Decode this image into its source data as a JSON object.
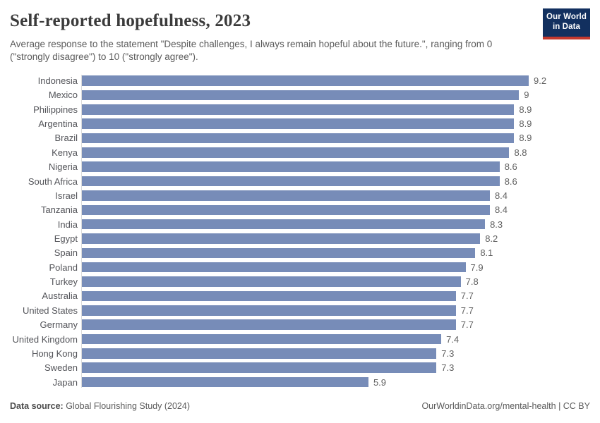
{
  "header": {
    "title": "Self-reported hopefulness, 2023",
    "subtitle": "Average response to the statement \"Despite challenges, I always remain hopeful about the future.\", ranging from 0 (\"strongly disagree\") to 10 (\"strongly agree\").",
    "logo": {
      "line1": "Our World",
      "line2": "in Data"
    }
  },
  "chart_data": {
    "type": "bar",
    "orientation": "horizontal",
    "title": "Self-reported hopefulness, 2023",
    "xlabel": "",
    "ylabel": "",
    "xlim": [
      0,
      9.2
    ],
    "grid": false,
    "bar_color": "#778cb8",
    "value_labels_shown": true,
    "categories": [
      "Indonesia",
      "Mexico",
      "Philippines",
      "Argentina",
      "Brazil",
      "Kenya",
      "Nigeria",
      "South Africa",
      "Israel",
      "Tanzania",
      "India",
      "Egypt",
      "Spain",
      "Poland",
      "Turkey",
      "Australia",
      "United States",
      "Germany",
      "United Kingdom",
      "Hong Kong",
      "Sweden",
      "Japan"
    ],
    "values": [
      9.2,
      9,
      8.9,
      8.9,
      8.9,
      8.8,
      8.6,
      8.6,
      8.4,
      8.4,
      8.3,
      8.2,
      8.1,
      7.9,
      7.8,
      7.7,
      7.7,
      7.7,
      7.4,
      7.3,
      7.3,
      5.9
    ],
    "value_labels": [
      "9.2",
      "9",
      "8.9",
      "8.9",
      "8.9",
      "8.8",
      "8.6",
      "8.6",
      "8.4",
      "8.4",
      "8.3",
      "8.2",
      "8.1",
      "7.9",
      "7.8",
      "7.7",
      "7.7",
      "7.7",
      "7.4",
      "7.3",
      "7.3",
      "5.9"
    ]
  },
  "footer": {
    "source_label": "Data source:",
    "source_value": " Global Flourishing Study (2024)",
    "link": "OurWorldinData.org/mental-health | CC BY"
  },
  "colors": {
    "bar": "#778cb8",
    "title": "#3b3b3b",
    "subtitle": "#5b5b5b",
    "axis_line": "#dcdcdc",
    "logo_background": "#12305f",
    "logo_accent": "#c4392e"
  }
}
